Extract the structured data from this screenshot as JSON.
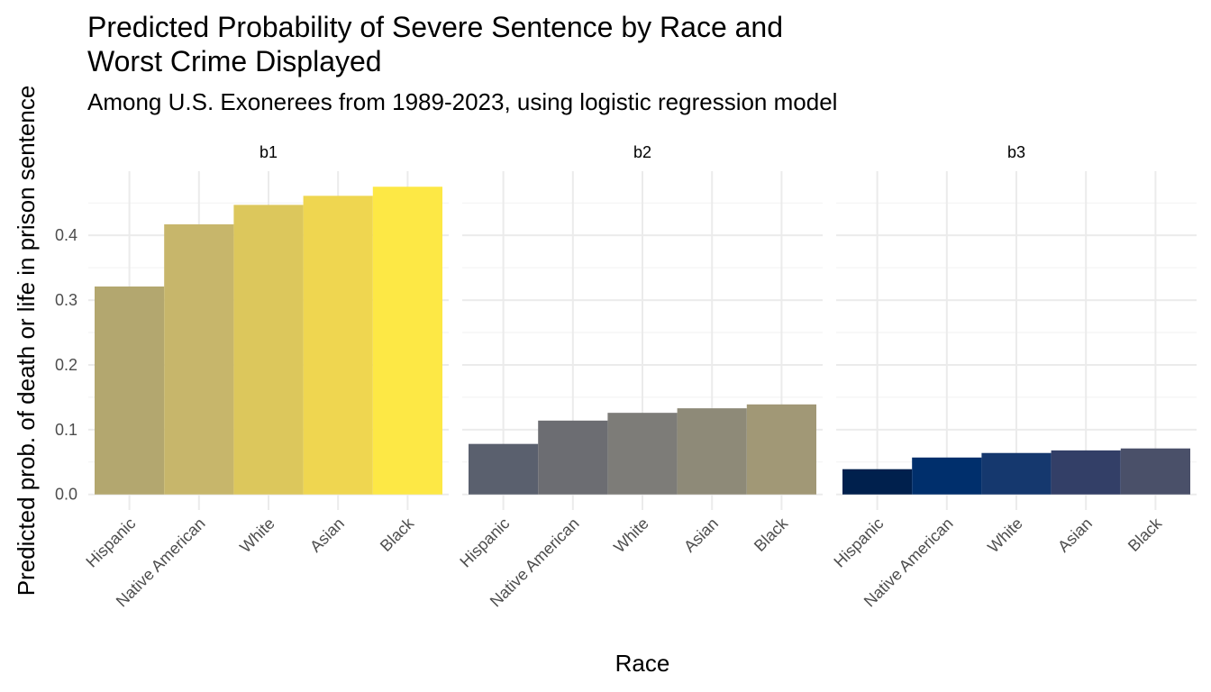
{
  "chart_data": {
    "type": "bar",
    "title": [
      "Predicted Probability of Severe Sentence by Race and",
      "Worst Crime Displayed"
    ],
    "subtitle": "Among U.S. Exonerees from 1989-2023, using logistic regression model",
    "x_label": "Race",
    "y_label": "Predicted prob. of death or life in prison sentence",
    "categories": [
      "Hispanic",
      "Native American",
      "White",
      "Asian",
      "Black"
    ],
    "ylim": [
      -0.024,
      0.499
    ],
    "yticks": [
      {
        "value": 0,
        "label": "0.0"
      },
      0.1,
      0.2,
      0.3,
      0.4
    ],
    "minor_yticks": [
      0.05,
      0.15,
      0.25,
      0.35,
      0.45
    ],
    "grid": true,
    "panels": [
      {
        "name": "b1",
        "values": [
          0.321,
          0.417,
          0.447,
          0.461,
          0.475
        ],
        "colors": [
          "#b3a76f",
          "#c7b66b",
          "#dcc75c",
          "#efd650",
          "#fde845"
        ]
      },
      {
        "name": "b2",
        "values": [
          0.078,
          0.114,
          0.126,
          0.133,
          0.139
        ],
        "colors": [
          "#5a606e",
          "#6c6d72",
          "#7d7c78",
          "#8e8a78",
          "#a19876"
        ]
      },
      {
        "name": "b3",
        "values": [
          0.039,
          0.057,
          0.064,
          0.068,
          0.071
        ],
        "colors": [
          "#00204d",
          "#002f6c",
          "#15386e",
          "#333f67",
          "#4a5069"
        ]
      }
    ]
  }
}
